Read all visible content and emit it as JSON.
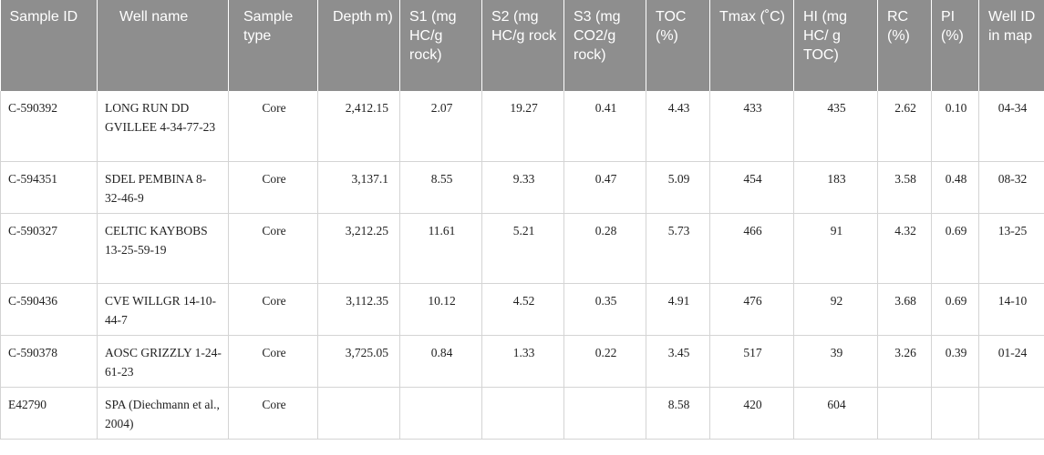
{
  "headers": [
    "Sample ID",
    "Well name",
    "Sample type",
    "Depth m)",
    "S1 (mg HC/g rock)",
    "S2 (mg HC/g rock",
    "S3 (mg CO2/g rock)",
    "TOC (%)",
    "Tmax (˚C)",
    "HI (mg HC/ g TOC)",
    "RC (%)",
    "PI (%)",
    "Well ID in map"
  ],
  "rows": [
    [
      "C-590392",
      "LONG RUN DD GVILLEE 4-34-77-23",
      "Core",
      "2,412.15",
      "2.07",
      "19.27",
      "0.41",
      "4.43",
      "433",
      "435",
      "2.62",
      "0.10",
      "04-34"
    ],
    [
      "C-594351",
      "SDEL PEMBINA 8-32-46-9",
      "Core",
      "3,137.1",
      "8.55",
      "9.33",
      "0.47",
      "5.09",
      "454",
      "183",
      "3.58",
      "0.48",
      "08-32"
    ],
    [
      "C-590327",
      "CELTIC KAYBOBS 13-25-59-19",
      "Core",
      "3,212.25",
      "11.61",
      "5.21",
      "0.28",
      "5.73",
      "466",
      "91",
      "4.32",
      "0.69",
      "13-25"
    ],
    [
      "C-590436",
      "CVE WILLGR 14-10-44-7",
      "Core",
      "3,112.35",
      "10.12",
      "4.52",
      "0.35",
      "4.91",
      "476",
      "92",
      "3.68",
      "0.69",
      "14-10"
    ],
    [
      "C-590378",
      "AOSC GRIZZLY 1-24-61-23",
      "Core",
      "3,725.05",
      "0.84",
      "1.33",
      "0.22",
      "3.45",
      "517",
      "39",
      "3.26",
      "0.39",
      "01-24"
    ],
    [
      "E42790",
      "SPA (Diechmann et al., 2004)",
      "Core",
      "",
      "",
      "",
      "",
      "8.58",
      "420",
      "604",
      "",
      "",
      ""
    ]
  ]
}
